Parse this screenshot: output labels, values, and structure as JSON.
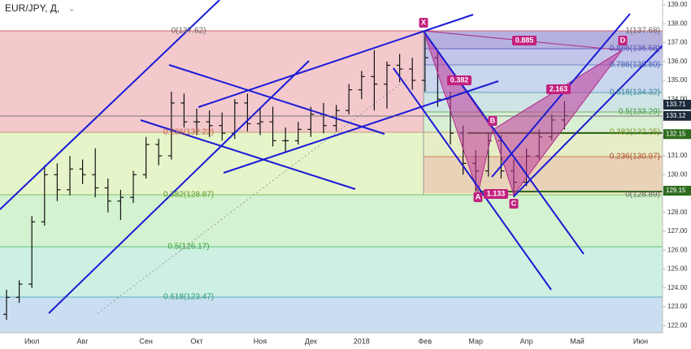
{
  "header": {
    "symbol": "EUR/JPY, Д,"
  },
  "chart_data": {
    "type": "ohlc",
    "categories": [
      null,
      null,
      "Июл",
      null,
      null,
      null,
      "Авг",
      null,
      null,
      null,
      null,
      "Сен",
      null,
      null,
      null,
      "Окт",
      null,
      null,
      null,
      null,
      "Ноя",
      null,
      null,
      null,
      "Дек",
      null,
      null,
      null,
      "2018",
      null,
      null,
      null,
      null,
      "Фев",
      null,
      null,
      null,
      "Мар",
      null,
      null,
      null,
      "Апр",
      null,
      null,
      null,
      "Май",
      null,
      null,
      null,
      null,
      "Июн",
      null
    ],
    "open": [
      122.6,
      123.5,
      124.2,
      127.5,
      130.0,
      129.2,
      130.3,
      130.0,
      129.3,
      128.6,
      128.8,
      130.0,
      131.6,
      131.0,
      133.8,
      132.8,
      132.8,
      132.6,
      132.2,
      133.8,
      132.7,
      132.8,
      131.8,
      131.8,
      132.4,
      133.2,
      132.6,
      133.4,
      134.5,
      135.2,
      134.8,
      135.8,
      135.6,
      135.0,
      136.2,
      134.0,
      132.2,
      130.6,
      130.2,
      131.8,
      130.2,
      129.6,
      131.0,
      132.0,
      132.9,
      null,
      null,
      null,
      null,
      null,
      null,
      null
    ],
    "high": [
      123.9,
      124.4,
      127.8,
      130.5,
      130.6,
      131.0,
      130.8,
      131.4,
      129.8,
      129.2,
      130.2,
      132.0,
      131.9,
      134.4,
      134.3,
      133.5,
      133.4,
      133.3,
      134.0,
      134.3,
      133.5,
      133.6,
      132.5,
      132.8,
      133.6,
      133.8,
      133.7,
      134.8,
      135.5,
      136.6,
      136.0,
      136.4,
      136.2,
      137.6,
      136.6,
      134.4,
      132.6,
      131.3,
      132.2,
      132.1,
      130.8,
      131.4,
      132.4,
      133.2,
      133.9,
      null,
      null,
      null,
      null,
      null,
      null,
      null
    ],
    "low": [
      122.3,
      123.2,
      124.0,
      127.3,
      128.6,
      128.9,
      129.5,
      128.8,
      128.0,
      127.6,
      128.5,
      129.8,
      130.5,
      130.8,
      132.5,
      132.1,
      132.0,
      131.8,
      131.9,
      132.3,
      132.1,
      131.5,
      131.2,
      131.6,
      132.0,
      132.2,
      132.3,
      133.2,
      134.0,
      133.4,
      133.5,
      134.9,
      134.5,
      134.4,
      133.6,
      131.6,
      130.0,
      129.1,
      129.9,
      129.8,
      128.8,
      129.4,
      130.8,
      131.8,
      132.4,
      null,
      null,
      null,
      null,
      null,
      null,
      null
    ],
    "close": [
      123.5,
      124.2,
      127.5,
      130.0,
      129.2,
      130.3,
      130.0,
      129.3,
      128.6,
      128.8,
      130.0,
      131.6,
      131.0,
      133.8,
      132.8,
      132.8,
      132.6,
      132.2,
      133.8,
      132.7,
      132.8,
      131.8,
      131.8,
      132.4,
      133.2,
      132.6,
      133.4,
      134.5,
      135.2,
      134.8,
      135.8,
      135.6,
      135.0,
      136.2,
      134.0,
      132.2,
      130.6,
      130.2,
      131.8,
      130.2,
      129.6,
      131.0,
      132.0,
      132.9,
      133.12,
      null,
      null,
      null,
      null,
      null,
      null,
      null
    ],
    "color": "#111111",
    "ylim": [
      121.62,
      139.26
    ],
    "yticks": [
      {
        "value": 122,
        "label": "122.00"
      },
      {
        "value": 123,
        "label": "123.00"
      },
      {
        "value": 124,
        "label": "124.00"
      },
      {
        "value": 125,
        "label": "125.00"
      },
      {
        "value": 126,
        "label": "126.00"
      },
      {
        "value": 127,
        "label": "127.00"
      },
      {
        "value": 128,
        "label": "128.00"
      },
      {
        "value": 129,
        "label": "129.00"
      },
      {
        "value": 130,
        "label": "130.00"
      },
      {
        "value": 131,
        "label": "131.00"
      },
      {
        "value": 132,
        "label": "132.00"
      },
      {
        "value": 133,
        "label": "133.00"
      },
      {
        "value": 134,
        "label": "134.00"
      },
      {
        "value": 135,
        "label": "135.00"
      },
      {
        "value": 136,
        "label": "136.00"
      },
      {
        "value": 137,
        "label": "137.00"
      },
      {
        "value": 138,
        "label": "138.00"
      },
      {
        "value": 139,
        "label": "139.00"
      }
    ],
    "price_labels": [
      {
        "value": 133.71,
        "label": "133.71",
        "color": "#1c2a3a"
      },
      {
        "value": 133.12,
        "label": "133.12",
        "color": "#1c2a3a"
      },
      {
        "value": 132.15,
        "label": "132.15",
        "color": "#2e6b1e"
      },
      {
        "value": 129.15,
        "label": "129.15",
        "color": "#2e6b1e"
      }
    ],
    "fib_labels": [
      "0(137.62)",
      "0.236(132.22)",
      "0.382(128.87)",
      "0.5(126.17)",
      "0.618(123.47)",
      "1(137.68)",
      "0.886(136.68)",
      "0.786(135.80)",
      "0.618(134.32)",
      "0.5(133.29)",
      "0.382(132.25)",
      "0.236(130.97)",
      "0(128.89)"
    ],
    "pattern_points": [
      "X",
      "A",
      "B",
      "C",
      "D"
    ],
    "pattern_ratios": [
      "0.382",
      "0.885",
      "2.163",
      "1.133"
    ]
  }
}
